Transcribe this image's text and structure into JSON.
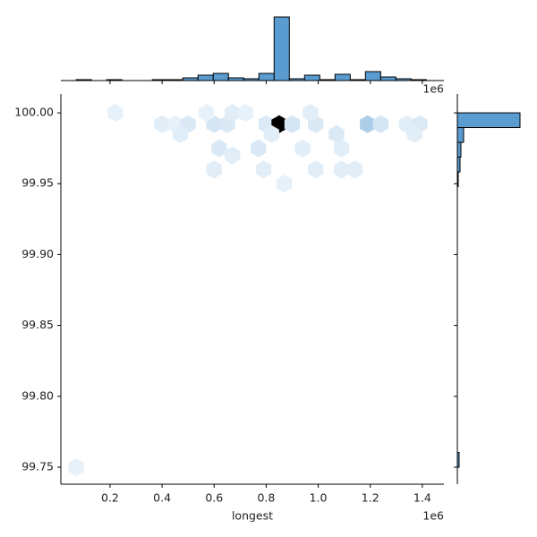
{
  "chart_data": {
    "type": "hexbin",
    "x_label": "longest",
    "x_offset_label": "1e6",
    "xlim": [
      11000,
      1483000
    ],
    "ylim": [
      99.738,
      100.0133
    ],
    "xticks": [
      {
        "value": 200000,
        "label": "0.2"
      },
      {
        "value": 400000,
        "label": "0.4"
      },
      {
        "value": 600000,
        "label": "0.6"
      },
      {
        "value": 800000,
        "label": "0.8"
      },
      {
        "value": 1000000,
        "label": "1.0"
      },
      {
        "value": 1200000,
        "label": "1.2"
      },
      {
        "value": 1400000,
        "label": "1.4"
      }
    ],
    "yticks": [
      {
        "value": 99.75,
        "label": "99.75"
      },
      {
        "value": 99.8,
        "label": "99.80"
      },
      {
        "value": 99.85,
        "label": "99.85"
      },
      {
        "value": 99.9,
        "label": "99.90"
      },
      {
        "value": 99.95,
        "label": "99.95"
      },
      {
        "value": 100,
        "label": "100.00"
      }
    ],
    "hex_colors": [
      "#eef5fb",
      "#6aa6d6",
      "#000000"
    ],
    "hexbins": {
      "x": [
        220000,
        70000,
        400000,
        450000,
        500000,
        600000,
        650000,
        800000,
        850000,
        900000,
        990000,
        1190000,
        1240000,
        1340000,
        1390000,
        570000,
        670000,
        720000,
        970000,
        470000,
        820000,
        1070000,
        1370000,
        620000,
        770000,
        940000,
        1090000,
        670000,
        600000,
        790000,
        990000,
        1090000,
        1140000,
        870000
      ],
      "y": [
        100.0,
        99.75,
        99.992,
        99.992,
        99.992,
        99.992,
        99.992,
        99.992,
        99.992,
        99.992,
        99.992,
        99.992,
        99.992,
        99.992,
        99.992,
        100.0,
        100.0,
        100.0,
        100.0,
        99.985,
        99.985,
        99.985,
        99.985,
        99.975,
        99.975,
        99.975,
        99.975,
        99.97,
        99.96,
        99.96,
        99.96,
        99.96,
        99.96,
        99.95
      ],
      "counts": [
        1,
        1,
        2,
        1,
        3,
        4,
        3,
        3,
        40,
        4,
        3,
        10,
        4,
        2,
        3,
        1,
        2,
        1,
        2,
        2,
        2,
        3,
        2,
        3,
        3,
        2,
        2,
        2,
        2,
        2,
        2,
        2,
        2,
        1
      ]
    },
    "hist_color": "#5a9bd0",
    "x_hist": {
      "bins": [
        70000,
        128500,
        187000,
        245500,
        304000,
        362500,
        421000,
        479500,
        538000,
        596500,
        655000,
        713500,
        772000,
        830500,
        889000,
        947500,
        1006000,
        1064500,
        1123000,
        1181500,
        1240000,
        1298500,
        1357000,
        1415500
      ],
      "counts": [
        1,
        0,
        1,
        0,
        0,
        1,
        1,
        3,
        6,
        8,
        3,
        2,
        8,
        71,
        2,
        6,
        1,
        7,
        1,
        10,
        4,
        2,
        1
      ],
      "lim": [
        0,
        75
      ]
    },
    "y_hist": {
      "bins": [
        99.75,
        99.7604,
        99.7708,
        99.7812,
        99.7917,
        99.8021,
        99.8125,
        99.8229,
        99.8333,
        99.8438,
        99.8542,
        99.8646,
        99.875,
        99.8854,
        99.8958,
        99.9062,
        99.9167,
        99.9271,
        99.9375,
        99.9479,
        99.9583,
        99.9688,
        99.9792,
        99.9896,
        100.0
      ],
      "counts": [
        2,
        0,
        0,
        0,
        0,
        0,
        0,
        0,
        0,
        0,
        0,
        0,
        0,
        0,
        0,
        0,
        0,
        0,
        0,
        1,
        3,
        4,
        7,
        70
      ],
      "lim": [
        0,
        70
      ]
    }
  }
}
